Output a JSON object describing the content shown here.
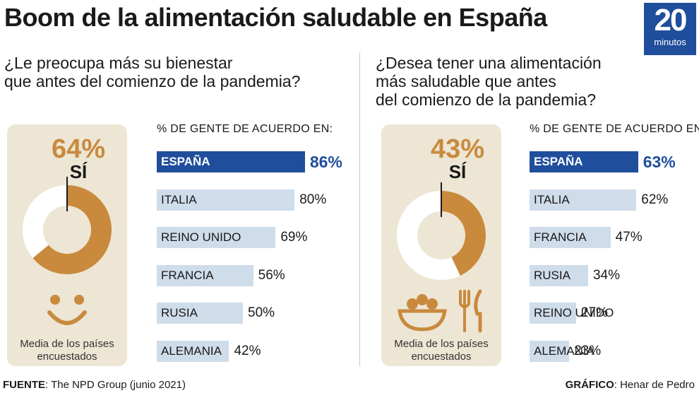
{
  "title": "Boom de la alimentación saludable en España",
  "logo": {
    "number": "20",
    "word": "minutos"
  },
  "colors": {
    "accent": "#1f4e9c",
    "donut": "#c98a3e",
    "bar": "#cfdcea",
    "card": "#ede6d4"
  },
  "chart_data": [
    {
      "type": "bar",
      "question": [
        "¿Le preocupa más su bienestar",
        "que antes del comienzo de la pandemia?"
      ],
      "column_header": "% DE GENTE DE ACUERDO EN:",
      "categories": [
        "ESPAÑA",
        "ITALIA",
        "REINO UNIDO",
        "FRANCIA",
        "RUSIA",
        "ALEMANIA"
      ],
      "values": [
        86,
        80,
        69,
        56,
        50,
        42
      ],
      "value_labels": [
        "86%",
        "80%",
        "69%",
        "56%",
        "50%",
        "42%"
      ],
      "highlight": "ESPAÑA",
      "donut": {
        "value": 64,
        "label": "64%",
        "caption": "SÍ",
        "note": [
          "Media de los países",
          "encuestados"
        ]
      },
      "icon": "smiley-face-icon"
    },
    {
      "type": "bar",
      "question": [
        "¿Desea tener una alimentación",
        "más saludable que antes",
        "del comienzo de la pandemia?"
      ],
      "column_header": "% DE GENTE DE ACUERDO EN:",
      "categories": [
        "ESPAÑA",
        "ITALIA",
        "FRANCIA",
        "RUSIA",
        "REINO UNIDO",
        "ALEMANIA"
      ],
      "values": [
        63,
        62,
        47,
        34,
        27,
        23
      ],
      "value_labels": [
        "63%",
        "62%",
        "47%",
        "34%",
        "27%",
        "23%"
      ],
      "highlight": "ESPAÑA",
      "donut": {
        "value": 43,
        "label": "43%",
        "caption": "SÍ",
        "note": [
          "Media de los países",
          "encuestados"
        ]
      },
      "icon": "salad-bowl-and-cutlery-icon"
    }
  ],
  "footer": {
    "source_label": "FUENTE",
    "source_text": ": The NPD Group (junio 2021)",
    "credit_label": "GRÁFICO",
    "credit_text": ": Henar de Pedro"
  }
}
